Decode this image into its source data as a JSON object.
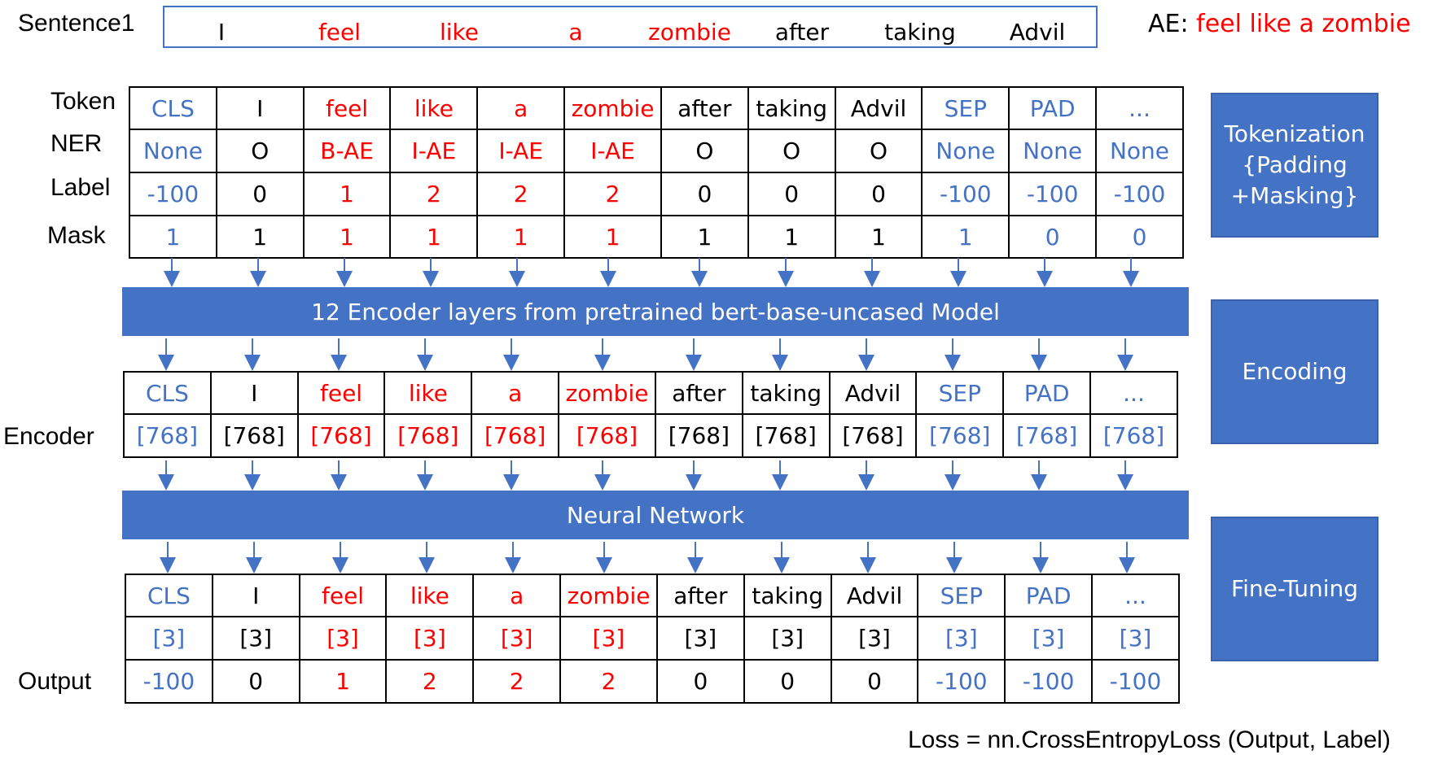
{
  "sentence": {
    "label": "Sentence1",
    "words": [
      {
        "text": "I",
        "color": "#000000"
      },
      {
        "text": "feel",
        "color": "#ff0000"
      },
      {
        "text": "like",
        "color": "#ff0000"
      },
      {
        "text": "a",
        "color": "#ff0000"
      },
      {
        "text": "zombie",
        "color": "#ff0000"
      },
      {
        "text": "after",
        "color": "#000000"
      },
      {
        "text": "taking",
        "color": "#000000"
      },
      {
        "text": "Advil",
        "color": "#000000"
      }
    ],
    "ae_prefix": "AE:",
    "ae_value": "feel like a zombie"
  },
  "row_labels": {
    "token": "Token",
    "ner": "NER",
    "label": "Label",
    "mask": "Mask",
    "encoder": "Encoder",
    "output": "Output"
  },
  "colors": {
    "blue": "#4472c4",
    "red": "#ff0000",
    "black": "#000000"
  },
  "tokens": [
    {
      "text": "CLS",
      "kind": "blue"
    },
    {
      "text": "I",
      "kind": "black"
    },
    {
      "text": "feel",
      "kind": "red"
    },
    {
      "text": "like",
      "kind": "red"
    },
    {
      "text": "a",
      "kind": "red"
    },
    {
      "text": "zombie",
      "kind": "red"
    },
    {
      "text": "after",
      "kind": "black"
    },
    {
      "text": "taking",
      "kind": "black"
    },
    {
      "text": "Advil",
      "kind": "black"
    },
    {
      "text": "SEP",
      "kind": "blue"
    },
    {
      "text": "PAD",
      "kind": "blue"
    },
    {
      "text": "...",
      "kind": "blue"
    }
  ],
  "ner": [
    "None",
    "O",
    "B-AE",
    "I-AE",
    "I-AE",
    "I-AE",
    "O",
    "O",
    "O",
    "None",
    "None",
    "None"
  ],
  "labels": [
    "-100",
    "0",
    "1",
    "2",
    "2",
    "2",
    "0",
    "0",
    "0",
    "-100",
    "-100",
    "-100"
  ],
  "mask": [
    "1",
    "1",
    "1",
    "1",
    "1",
    "1",
    "1",
    "1",
    "1",
    "1",
    "0",
    "0"
  ],
  "encoder_dims": [
    "[768]",
    "[768]",
    "[768]",
    "[768]",
    "[768]",
    "[768]",
    "[768]",
    "[768]",
    "[768]",
    "[768]",
    "[768]",
    "[768]"
  ],
  "output_dims": [
    "[3]",
    "[3]",
    "[3]",
    "[3]",
    "[3]",
    "[3]",
    "[3]",
    "[3]",
    "[3]",
    "[3]",
    "[3]",
    "[3]"
  ],
  "outputs": [
    "-100",
    "0",
    "1",
    "2",
    "2",
    "2",
    "0",
    "0",
    "0",
    "-100",
    "-100",
    "-100"
  ],
  "bars": {
    "encoder": "12 Encoder layers from pretrained bert-base-uncased Model",
    "nn": "Neural Network"
  },
  "stages": {
    "tokenization": [
      "Tokenization",
      "{Padding",
      "+Masking}"
    ],
    "encoding": "Encoding",
    "finetuning": "Fine-Tuning"
  },
  "loss": "Loss = nn.CrossEntropyLoss (Output, Label)"
}
